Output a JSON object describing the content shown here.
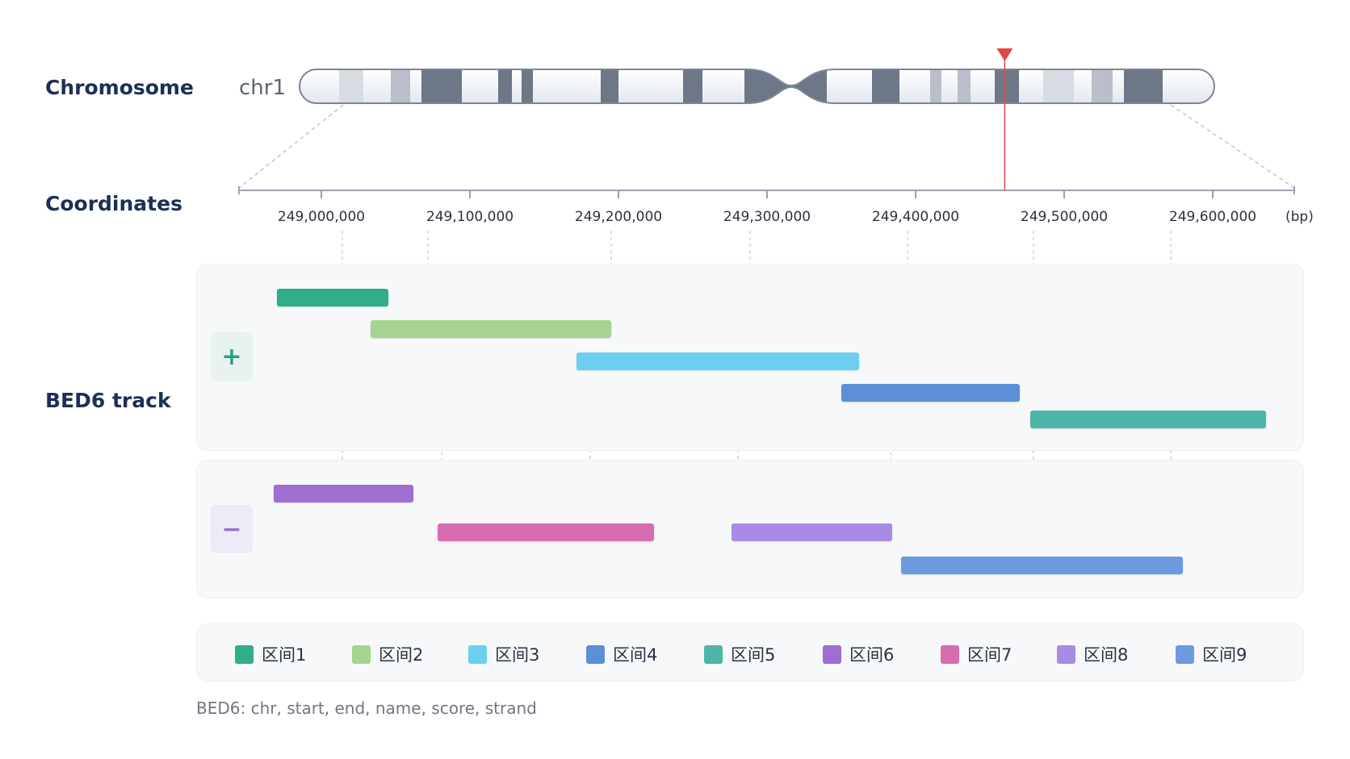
{
  "labels": {
    "chromosome": "Chromosome",
    "coordinates": "Coordinates",
    "track": "BED6 track"
  },
  "chromosome": {
    "name": "chr1",
    "marker_position": 249460000
  },
  "axis": {
    "unit": "(bp)",
    "ticks": [
      {
        "value": 249000000,
        "label": "249,000,000"
      },
      {
        "value": 249100000,
        "label": "249,100,000"
      },
      {
        "value": 249200000,
        "label": "249,200,000"
      },
      {
        "value": 249300000,
        "label": "249,300,000"
      },
      {
        "value": 249400000,
        "label": "249,400,000"
      },
      {
        "value": 249500000,
        "label": "249,500,000"
      },
      {
        "value": 249600000,
        "label": "249,600,000"
      }
    ]
  },
  "strands": {
    "plus": {
      "symbol": "+",
      "color": "#2d9f83",
      "bg": "#e8f2ef"
    },
    "minus": {
      "symbol": "−",
      "color": "#9a73cf",
      "bg": "#ecebf6"
    }
  },
  "intervals": [
    {
      "name": "区间1",
      "start": 248970000,
      "end": 249045000,
      "strand": "+",
      "color": "#2fae87"
    },
    {
      "name": "区间2",
      "start": 249033000,
      "end": 249195000,
      "strand": "+",
      "color": "#a6d38f"
    },
    {
      "name": "区间3",
      "start": 249172000,
      "end": 249362000,
      "strand": "+",
      "color": "#6ccfee"
    },
    {
      "name": "区间4",
      "start": 249350000,
      "end": 249470000,
      "strand": "+",
      "color": "#5d8fd6"
    },
    {
      "name": "区间5",
      "start": 249477000,
      "end": 249636000,
      "strand": "+",
      "color": "#4db6a8"
    },
    {
      "name": "区间6",
      "start": 248968000,
      "end": 249062000,
      "strand": "-",
      "color": "#9e6ed0"
    },
    {
      "name": "区间7",
      "start": 249078000,
      "end": 249224000,
      "strand": "-",
      "color": "#d76cae"
    },
    {
      "name": "区间8",
      "start": 249276000,
      "end": 249384000,
      "strand": "-",
      "color": "#a98ae4"
    },
    {
      "name": "区间9",
      "start": 249390000,
      "end": 249580000,
      "strand": "-",
      "color": "#6e9be0"
    }
  ],
  "caption": "BED6: chr, start, end, name, score, strand"
}
